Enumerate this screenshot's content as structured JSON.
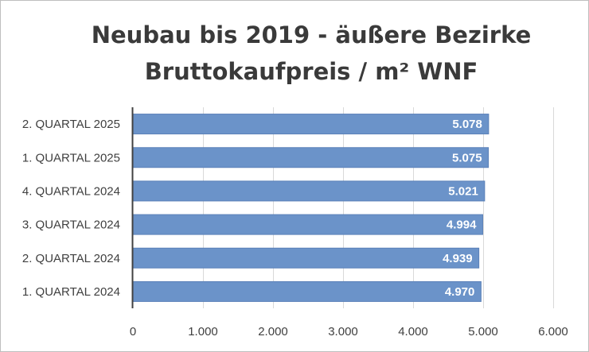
{
  "chart_data": {
    "type": "bar",
    "orientation": "horizontal",
    "title_lines": [
      "Neubau bis 2019 - äußere Bezirke",
      "Bruttokaufpreis / m² WNF"
    ],
    "categories": [
      "2. QUARTAL 2025",
      "1. QUARTAL 2025",
      "4. QUARTAL 2024",
      "3. QUARTAL 2024",
      "2. QUARTAL 2024",
      "1. QUARTAL 2024"
    ],
    "values": [
      5078,
      5075,
      5021,
      4994,
      4939,
      4970
    ],
    "value_labels": [
      "5.078",
      "5.075",
      "5.021",
      "4.994",
      "4.939",
      "4.970"
    ],
    "xlim": [
      0,
      6000
    ],
    "ticks": [
      0,
      1000,
      2000,
      3000,
      4000,
      5000,
      6000
    ],
    "tick_labels": [
      "0",
      "1.000",
      "2.000",
      "3.000",
      "4.000",
      "5.000",
      "6.000"
    ],
    "grid": true,
    "legend": "none",
    "colors": {
      "bar": "#6b93c9",
      "bar_border": "#5a80b8",
      "grid": "#d9d9d9",
      "axis": "#404040"
    }
  }
}
